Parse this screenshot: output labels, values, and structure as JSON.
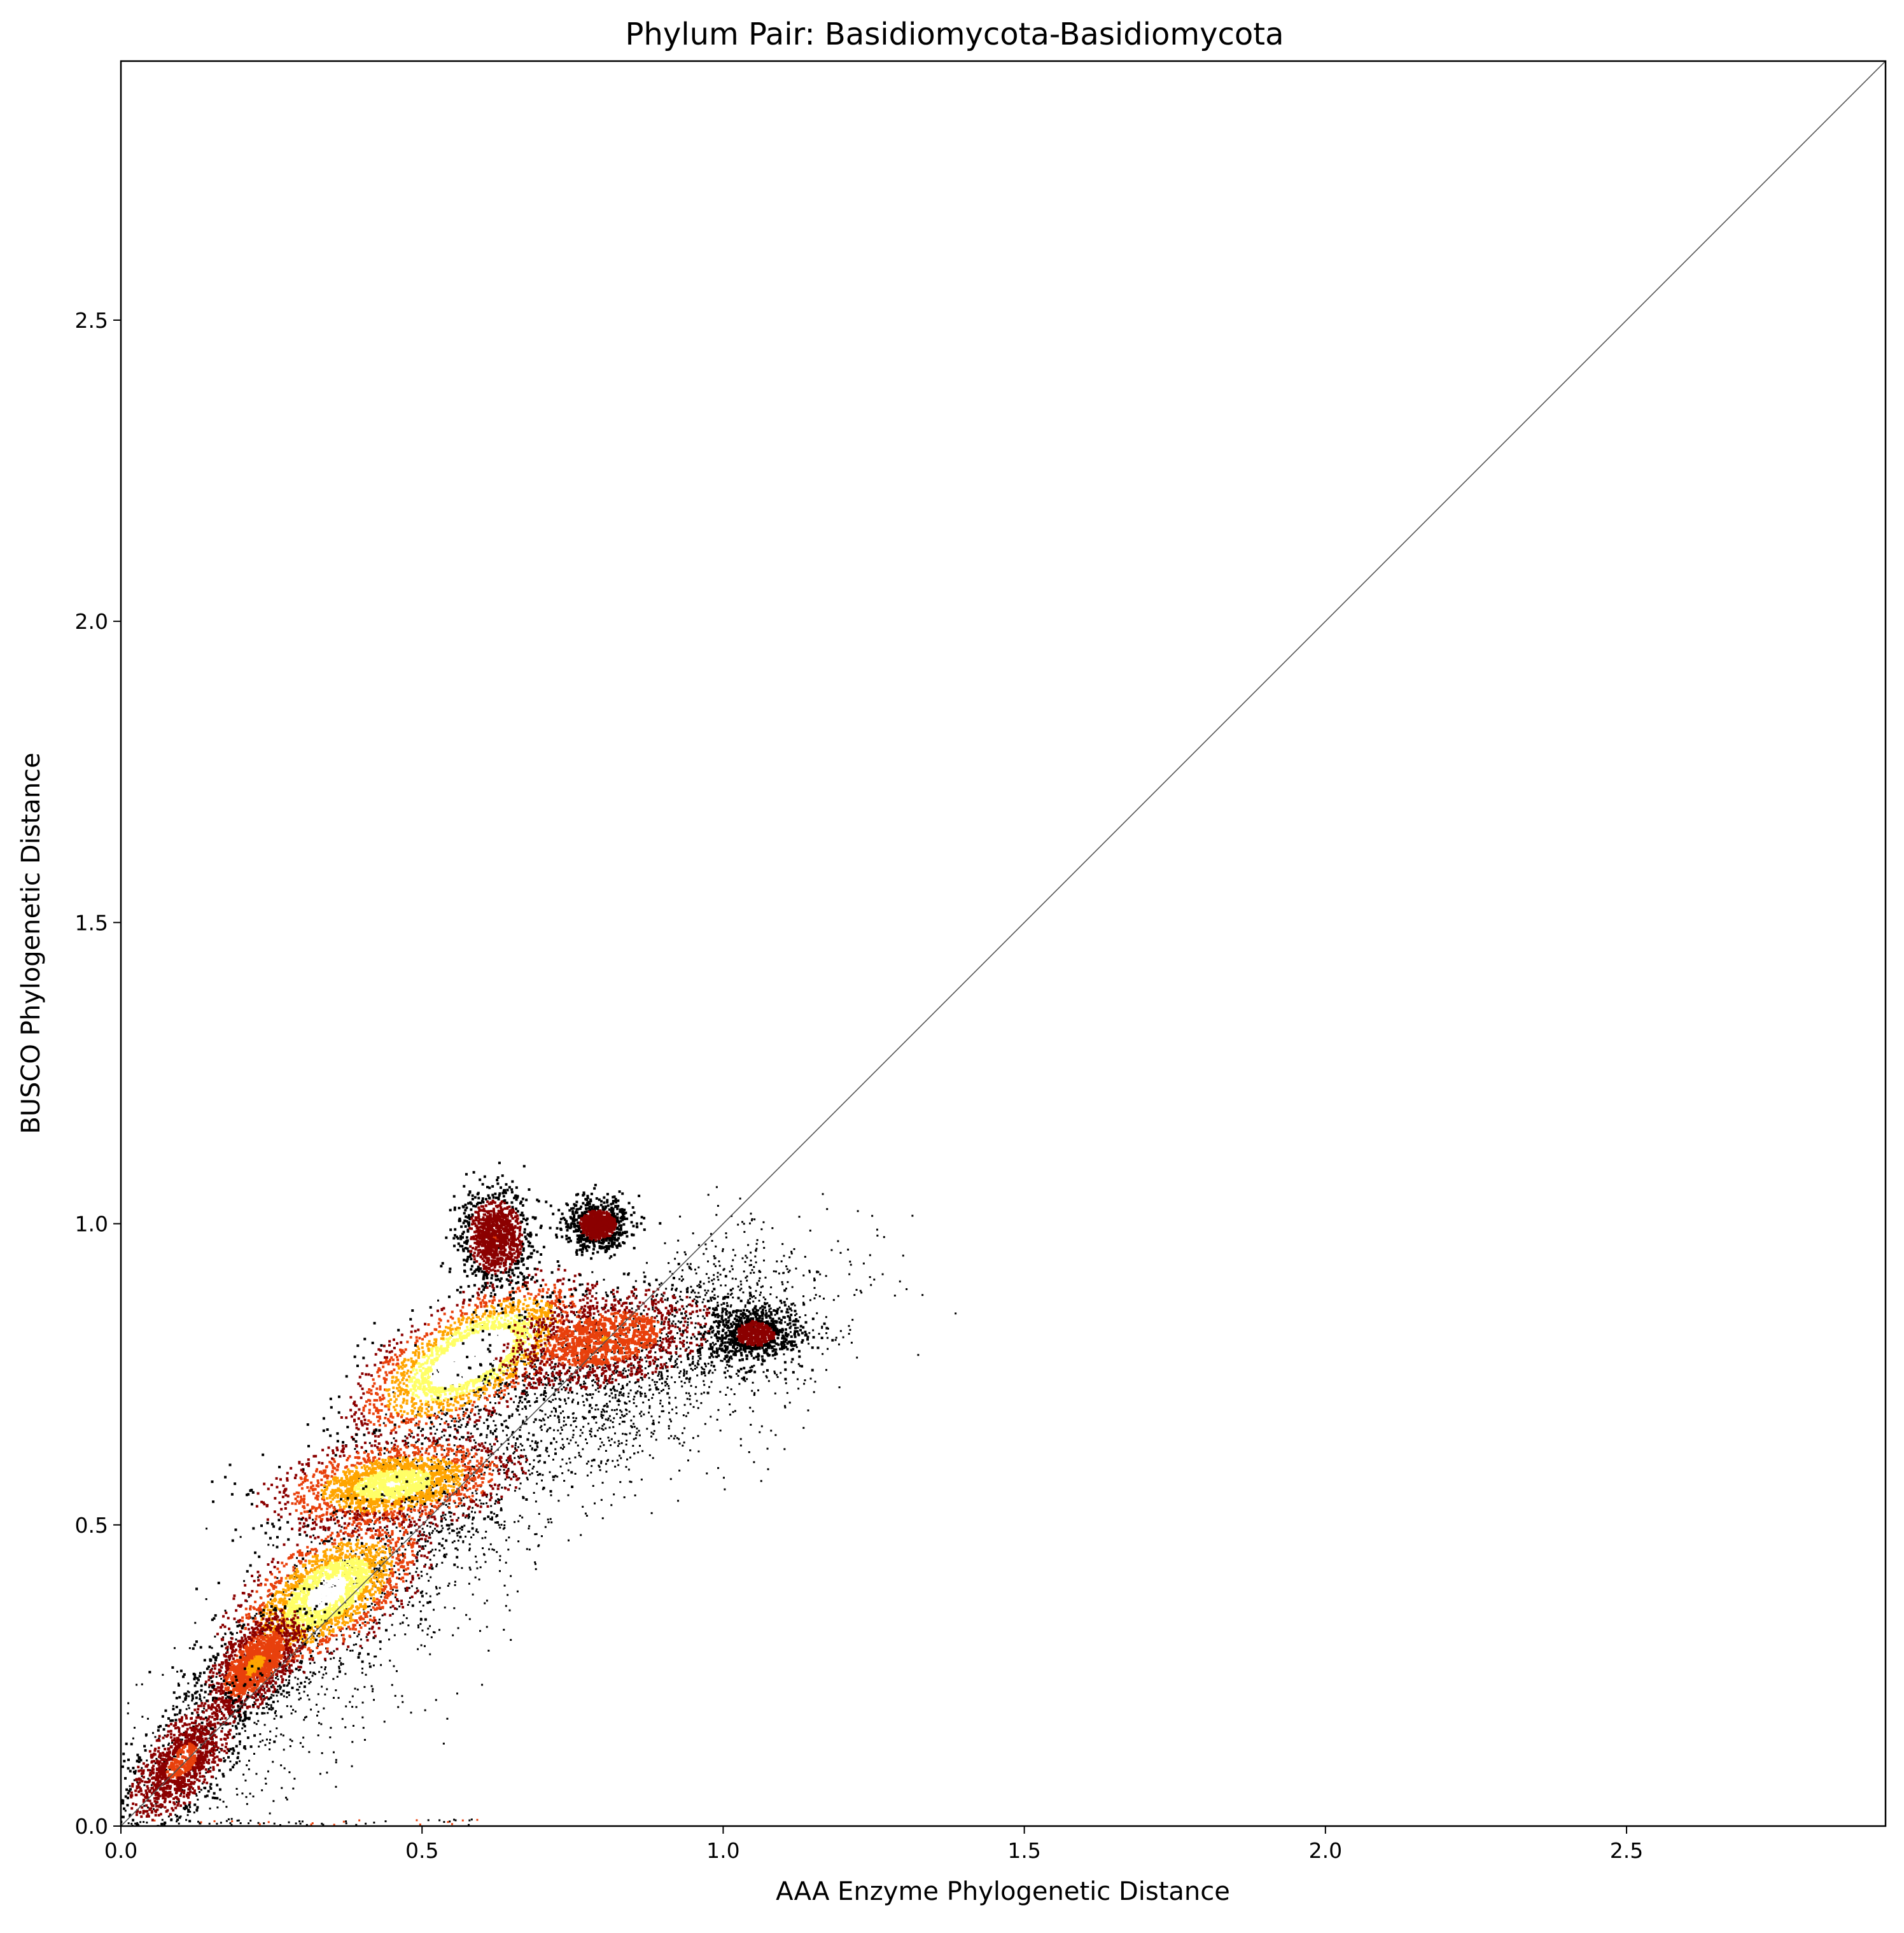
{
  "chart_data": {
    "type": "heatmap",
    "title": "Phylum Pair: Basidiomycota-Basidiomycota",
    "xlabel": "AAA Enzyme Phylogenetic Distance",
    "ylabel": "BUSCO Phylogenetic Distance",
    "xlim": [
      0.0,
      2.93
    ],
    "ylim": [
      0.0,
      2.93
    ],
    "x_ticks": [
      0.0,
      0.5,
      1.0,
      1.5,
      2.0,
      2.5
    ],
    "x_tick_labels": [
      "0.0",
      "0.5",
      "1.0",
      "1.5",
      "2.0",
      "2.5"
    ],
    "y_ticks": [
      0.0,
      0.5,
      1.0,
      1.5,
      2.0,
      2.5
    ],
    "y_tick_labels": [
      "0.0",
      "0.5",
      "1.0",
      "1.5",
      "2.0",
      "2.5"
    ],
    "grid": false,
    "legend": "none",
    "reference_line": {
      "from": [
        0.0,
        0.0
      ],
      "to": [
        2.93,
        2.93
      ],
      "color": "#555555"
    },
    "colormap": [
      "#000000",
      "#8b0000",
      "#e8400c",
      "#ffa500",
      "#ffff66",
      "#ffffff"
    ],
    "density_clusters": [
      {
        "x": 0.58,
        "y": 0.78,
        "sx": 0.085,
        "sy": 0.045,
        "intensity": 1.0,
        "tilt": 0.55
      },
      {
        "x": 0.45,
        "y": 0.57,
        "sx": 0.095,
        "sy": 0.035,
        "intensity": 0.75,
        "tilt": 0.15
      },
      {
        "x": 0.34,
        "y": 0.39,
        "sx": 0.075,
        "sy": 0.05,
        "intensity": 0.85,
        "tilt": 0.6
      },
      {
        "x": 0.8,
        "y": 0.81,
        "sx": 0.09,
        "sy": 0.04,
        "intensity": 0.45,
        "tilt": 0.2
      },
      {
        "x": 0.62,
        "y": 0.98,
        "sx": 0.03,
        "sy": 0.04,
        "intensity": 0.3,
        "tilt": 0.0
      },
      {
        "x": 0.79,
        "y": 1.0,
        "sx": 0.025,
        "sy": 0.02,
        "intensity": 0.25,
        "tilt": 0.0
      },
      {
        "x": 1.05,
        "y": 0.82,
        "sx": 0.04,
        "sy": 0.025,
        "intensity": 0.2,
        "tilt": 0.0
      },
      {
        "x": 0.22,
        "y": 0.27,
        "sx": 0.04,
        "sy": 0.035,
        "intensity": 0.5,
        "tilt": 0.8
      },
      {
        "x": 0.1,
        "y": 0.11,
        "sx": 0.05,
        "sy": 0.045,
        "intensity": 0.35,
        "tilt": 0.9
      }
    ]
  }
}
